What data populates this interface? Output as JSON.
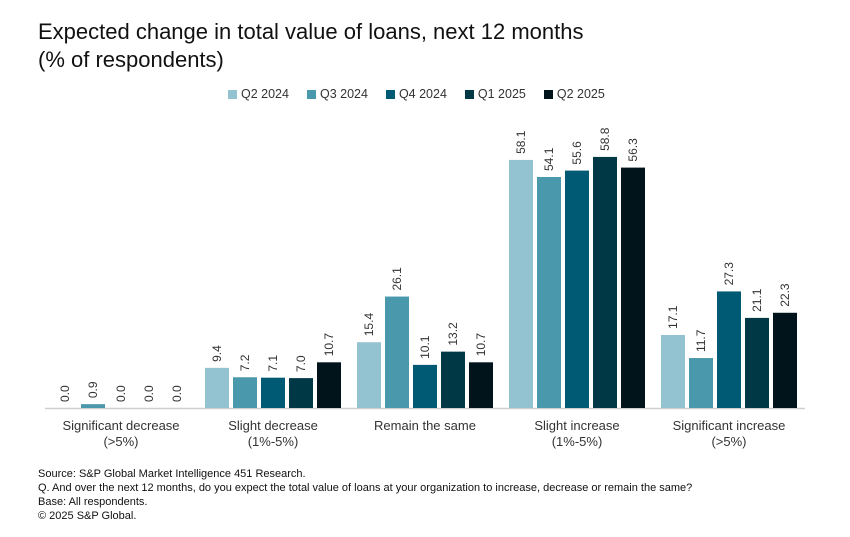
{
  "chart_data": {
    "type": "bar",
    "title": "Expected change in total value of loans, next 12 months",
    "subtitle": "(% of respondents)",
    "categories": [
      [
        "Significant decrease",
        "(>5%)"
      ],
      [
        "Slight decrease",
        "(1%-5%)"
      ],
      [
        "Remain the same"
      ],
      [
        "Slight increase",
        "(1%-5%)"
      ],
      [
        "Significant increase",
        "(>5%)"
      ]
    ],
    "series": [
      {
        "name": "Q2 2024",
        "color": "#93c2d0",
        "values": [
          0.0,
          9.4,
          15.4,
          58.1,
          17.1
        ]
      },
      {
        "name": "Q3 2024",
        "color": "#4a98ac",
        "values": [
          0.9,
          7.2,
          26.1,
          54.1,
          11.7
        ]
      },
      {
        "name": "Q4 2024",
        "color": "#005a73",
        "values": [
          0.0,
          7.1,
          10.1,
          55.6,
          27.3
        ]
      },
      {
        "name": "Q1 2025",
        "color": "#013846",
        "values": [
          0.0,
          7.0,
          13.2,
          58.8,
          21.1
        ]
      },
      {
        "name": "Q2 2025",
        "color": "#01141b",
        "values": [
          0.0,
          10.7,
          10.7,
          56.3,
          22.3
        ]
      }
    ],
    "ylim": [
      0,
      60
    ],
    "legend": "top-center",
    "grid": false
  },
  "footer": {
    "source": "Source: S&P Global Market Intelligence 451 Research.",
    "question": "Q. And over the next 12 months, do you expect the total value of loans at your organization to increase, decrease or remain the same?",
    "base": "Base: All respondents.",
    "copyright": "© 2025 S&P Global."
  }
}
